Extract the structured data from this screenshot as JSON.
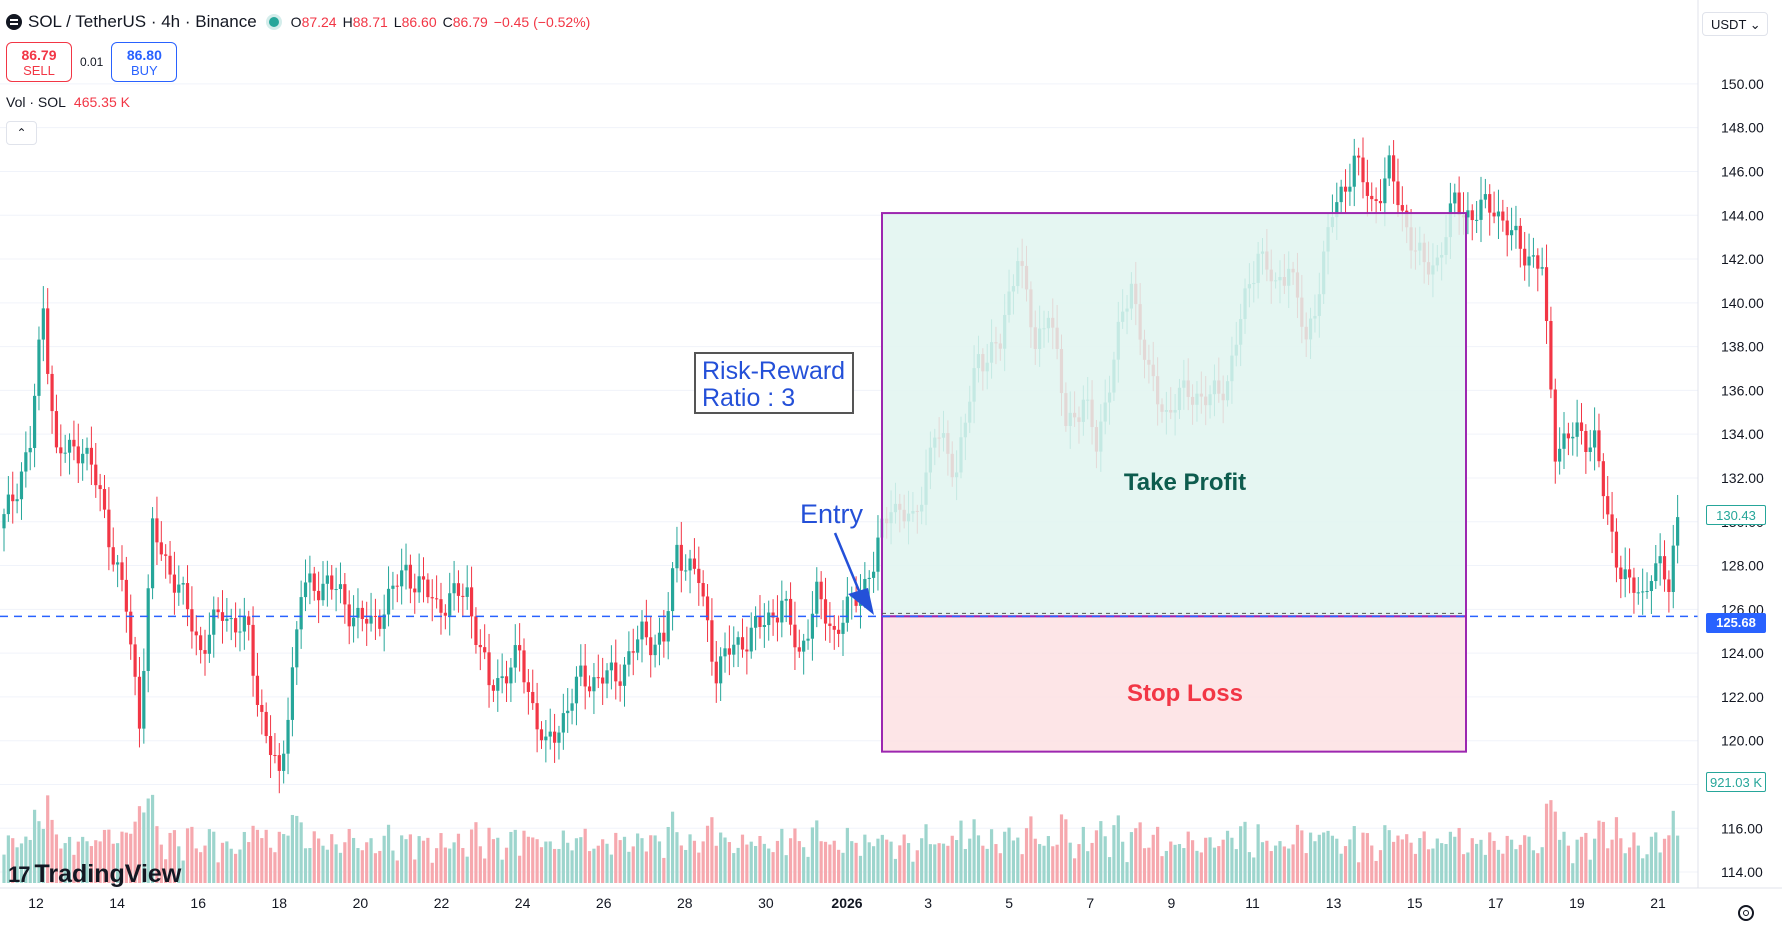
{
  "header": {
    "symbol": "SOL / TetherUS · 4h · Binance",
    "ohlc": {
      "o_label": "O",
      "o": "87.24",
      "h_label": "H",
      "h": "88.71",
      "l_label": "L",
      "l": "86.60",
      "c_label": "C",
      "c": "86.79",
      "change": "−0.45 (−0.52%)"
    }
  },
  "trade": {
    "sell_price": "86.79",
    "sell_label": "SELL",
    "spread": "0.01",
    "buy_price": "86.80",
    "buy_label": "BUY"
  },
  "volume": {
    "label": "Vol · SOL",
    "value": "465.35 K"
  },
  "collapse": "⌃",
  "currency": "USDT ⌄",
  "logo": {
    "mark": "17",
    "text": "TradingView"
  },
  "annotations": {
    "risk_reward_line1": "Risk-Reward",
    "risk_reward_line2": "Ratio : 3",
    "entry": "Entry",
    "take_profit": "Take Profit",
    "stop_loss": "Stop Loss"
  },
  "price_tags": {
    "last": "130.43",
    "entry": "125.68",
    "volume": "921.03 K"
  },
  "colors": {
    "up": "#26a69a",
    "down": "#f23645",
    "up_vol": "#9dd5cd",
    "down_vol": "#f6a8ae",
    "tp_fill": "#e0f4f0",
    "sl_fill": "#fde0e3",
    "box_border": "#9c27b0",
    "entry_line": "#2962ff",
    "annotation_blue": "#2450d8"
  },
  "chart_data": {
    "type": "candlestick",
    "y_axis": {
      "ylim": [
        113.5,
        151
      ],
      "ticks": [
        150,
        148,
        146,
        144,
        142,
        140,
        138,
        136,
        134,
        132,
        130,
        128,
        126,
        124,
        122,
        120,
        118,
        116,
        114
      ]
    },
    "x_axis": {
      "tick_labels": [
        "12",
        "14",
        "16",
        "18",
        "20",
        "22",
        "24",
        "26",
        "28",
        "30",
        "2026",
        "3",
        "5",
        "7",
        "9",
        "11",
        "13",
        "15",
        "17",
        "19",
        "21"
      ],
      "bold_labels": [
        "2026"
      ]
    },
    "position": {
      "entry": 125.68,
      "take_profit": 144.1,
      "stop_loss": 119.5
    },
    "pivots": [
      [
        0,
        130.0
      ],
      [
        6,
        133.5
      ],
      [
        9,
        139.8
      ],
      [
        12,
        133.0
      ],
      [
        18,
        133.5
      ],
      [
        22,
        131.2
      ],
      [
        28,
        126.0
      ],
      [
        31,
        121.0
      ],
      [
        34,
        129.5
      ],
      [
        40,
        127.0
      ],
      [
        45,
        124.2
      ],
      [
        50,
        125.9
      ],
      [
        56,
        124.8
      ],
      [
        58,
        122.0
      ],
      [
        63,
        118.0
      ],
      [
        68,
        126.8
      ],
      [
        74,
        127.3
      ],
      [
        79,
        126.0
      ],
      [
        84,
        125.2
      ],
      [
        92,
        127.8
      ],
      [
        99,
        126.2
      ],
      [
        106,
        126.8
      ],
      [
        111,
        122.4
      ],
      [
        118,
        123.8
      ],
      [
        124,
        119.5
      ],
      [
        132,
        122.8
      ],
      [
        140,
        122.9
      ],
      [
        146,
        124.8
      ],
      [
        151,
        124.5
      ],
      [
        154,
        128.8
      ],
      [
        159,
        127.3
      ],
      [
        163,
        123.2
      ],
      [
        167,
        124.3
      ],
      [
        173,
        125.2
      ],
      [
        178,
        126.3
      ],
      [
        182,
        124.0
      ],
      [
        186,
        126.5
      ],
      [
        190,
        125.0
      ],
      [
        194,
        126.2
      ],
      [
        199,
        128.0
      ],
      [
        203,
        131.0
      ],
      [
        208,
        129.8
      ],
      [
        213,
        134.0
      ],
      [
        218,
        132.5
      ],
      [
        223,
        137.5
      ],
      [
        228,
        138.0
      ],
      [
        232,
        142.5
      ],
      [
        236,
        137.8
      ],
      [
        239,
        140.0
      ],
      [
        243,
        134.5
      ],
      [
        247,
        135.5
      ],
      [
        250,
        133.5
      ],
      [
        254,
        137.5
      ],
      [
        258,
        141.0
      ],
      [
        262,
        136.5
      ],
      [
        266,
        135.0
      ],
      [
        271,
        136.0
      ],
      [
        276,
        135.5
      ],
      [
        280,
        136.5
      ],
      [
        284,
        140.0
      ],
      [
        287,
        142.5
      ],
      [
        291,
        140.5
      ],
      [
        294,
        142.0
      ],
      [
        298,
        138.0
      ],
      [
        304,
        144.0
      ],
      [
        309,
        146.5
      ],
      [
        313,
        144.5
      ],
      [
        317,
        146.0
      ],
      [
        321,
        143.5
      ],
      [
        325,
        141.5
      ],
      [
        328,
        142.0
      ],
      [
        332,
        144.5
      ],
      [
        336,
        144.0
      ],
      [
        341,
        144.5
      ],
      [
        345,
        143.0
      ],
      [
        349,
        142.2
      ],
      [
        352,
        141.5
      ],
      [
        353,
        138.5
      ],
      [
        355,
        133.5
      ],
      [
        360,
        134.0
      ],
      [
        364,
        133.8
      ],
      [
        367,
        130.0
      ],
      [
        369,
        128.5
      ],
      [
        372,
        127.0
      ],
      [
        375,
        126.5
      ],
      [
        377,
        128.0
      ],
      [
        379,
        127.8
      ],
      [
        381,
        126.9
      ],
      [
        383,
        130.43
      ]
    ]
  }
}
